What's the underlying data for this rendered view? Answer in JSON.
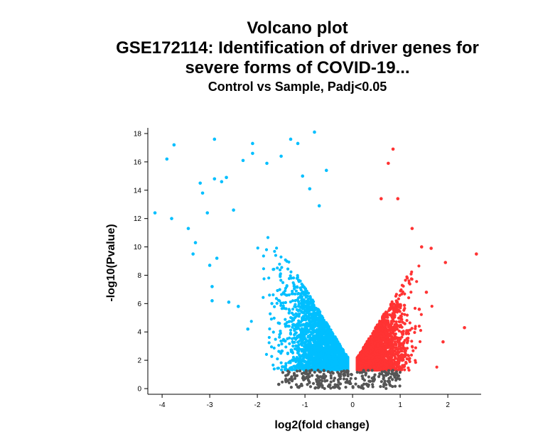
{
  "chart_data": {
    "type": "scatter",
    "title_lines": [
      "Volcano plot",
      "GSE172114: Identification of driver genes for",
      "severe forms of COVID-19..."
    ],
    "subtitle": "Control vs Sample, Padj<0.05",
    "xlabel": "log2(fold change)",
    "ylabel": "-log10(Pvalue)",
    "xlim": [
      -4.3,
      2.7
    ],
    "ylim": [
      -0.4,
      18.4
    ],
    "x_ticks": [
      -4,
      -3,
      -2,
      -1,
      0,
      1,
      2
    ],
    "y_ticks": [
      0,
      2,
      4,
      6,
      8,
      10,
      12,
      14,
      16,
      18
    ],
    "grid": false,
    "legend": "none",
    "colors": {
      "down": "#00bfff",
      "up": "#ff3333",
      "ns": "#555555"
    },
    "series": [
      {
        "key": "down",
        "points": [
          [
            -4.15,
            12.4
          ],
          [
            -3.9,
            16.2
          ],
          [
            -3.75,
            17.2
          ],
          [
            -3.8,
            12.0
          ],
          [
            -3.45,
            11.3
          ],
          [
            -3.3,
            10.3
          ],
          [
            -3.35,
            9.5
          ],
          [
            -3.2,
            14.5
          ],
          [
            -3.15,
            13.8
          ],
          [
            -3.05,
            12.4
          ],
          [
            -2.9,
            17.6
          ],
          [
            -2.9,
            14.8
          ],
          [
            -2.75,
            14.6
          ],
          [
            -2.65,
            14.9
          ],
          [
            -2.5,
            12.6
          ],
          [
            -2.3,
            16.1
          ],
          [
            -2.1,
            17.3
          ],
          [
            -2.1,
            16.6
          ],
          [
            -1.8,
            15.9
          ],
          [
            -1.5,
            16.4
          ],
          [
            -1.3,
            17.6
          ],
          [
            -1.15,
            17.3
          ],
          [
            -0.8,
            18.1
          ],
          [
            -0.55,
            15.4
          ],
          [
            -1.05,
            15.0
          ],
          [
            -2.95,
            7.2
          ],
          [
            -2.95,
            6.2
          ],
          [
            -2.6,
            6.1
          ],
          [
            -2.4,
            5.8
          ],
          [
            -2.2,
            4.2
          ],
          [
            -3.0,
            8.7
          ],
          [
            -2.85,
            9.2
          ],
          [
            -0.7,
            12.9
          ],
          [
            -0.9,
            14.1
          ]
        ],
        "cloud": {
          "count": 2600,
          "x_center": -0.55,
          "x_spread": 0.45,
          "x_min": -2.4,
          "x_max": -0.1,
          "y_min": 1.3,
          "y_max": 12.5
        }
      },
      {
        "key": "up",
        "points": [
          [
            0.85,
            16.9
          ],
          [
            0.75,
            15.9
          ],
          [
            0.95,
            13.4
          ],
          [
            0.6,
            13.4
          ],
          [
            1.25,
            11.3
          ],
          [
            1.45,
            10.0
          ],
          [
            1.65,
            9.9
          ],
          [
            1.95,
            8.9
          ],
          [
            2.6,
            9.5
          ],
          [
            2.35,
            4.3
          ],
          [
            1.9,
            3.3
          ],
          [
            1.4,
            5.6
          ],
          [
            1.55,
            6.8
          ]
        ],
        "cloud": {
          "count": 1900,
          "x_center": 0.5,
          "x_spread": 0.35,
          "x_min": 0.1,
          "x_max": 1.8,
          "y_min": 1.3,
          "y_max": 12.5
        }
      },
      {
        "key": "ns",
        "points": [
          [
            -1.55,
            0.3
          ],
          [
            -1.4,
            0.6
          ],
          [
            -1.2,
            0.9
          ],
          [
            -0.3,
            0.1
          ],
          [
            0.2,
            0.2
          ]
        ],
        "cloud": {
          "count": 260,
          "x_min": -1.5,
          "x_max": 1.0,
          "y_min": 0.0,
          "y_max": 1.3
        }
      }
    ]
  }
}
